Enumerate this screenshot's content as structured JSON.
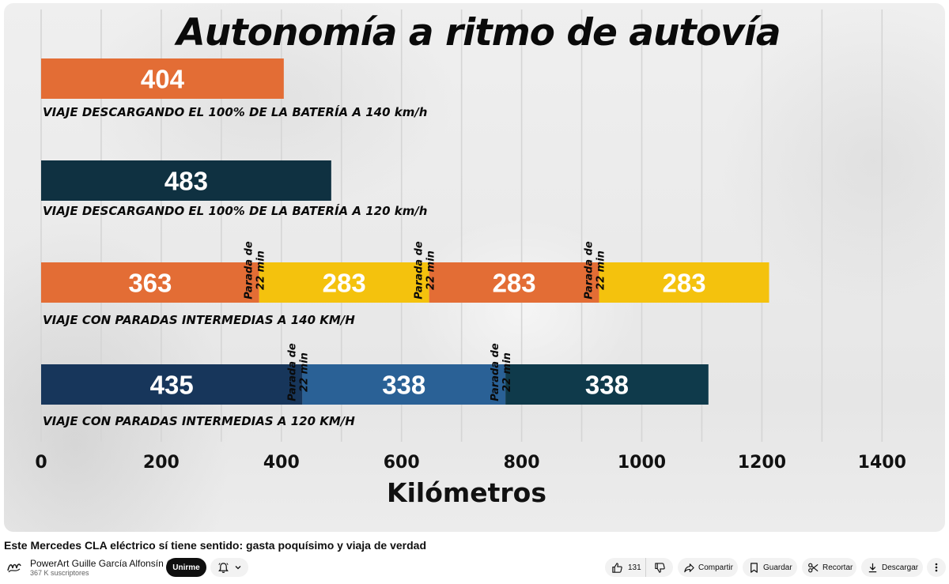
{
  "video": {
    "chart_title": "Autonomía a ritmo de autovía",
    "chart_data": {
      "type": "bar",
      "orientation": "horizontal-stacked",
      "x_label": "Kilómetros",
      "x_ticks": [
        "0",
        "200",
        "400",
        "600",
        "800",
        "1000",
        "1200",
        "1400"
      ],
      "xlim": [
        0,
        1460
      ],
      "grid": true,
      "stop_label_line1": "Parada de",
      "stop_label_line2": "22 min",
      "rows": [
        {
          "label": "VIAJE DESCARGANDO EL 100% DE LA BATERÍA A 140 km/h",
          "segments": [
            {
              "value": 404,
              "color": "#e36d35"
            }
          ],
          "stops_after": []
        },
        {
          "label": "VIAJE DESCARGANDO EL 100% DE LA BATERÍA A 120 km/h",
          "segments": [
            {
              "value": 483,
              "color": "#0f3141"
            }
          ],
          "stops_after": []
        },
        {
          "label": "VIAJE CON PARADAS INTERMEDIAS A 140 KM/H",
          "segments": [
            {
              "value": 363,
              "color": "#e36d35"
            },
            {
              "value": 283,
              "color": "#f4c20d"
            },
            {
              "value": 283,
              "color": "#e36d35"
            },
            {
              "value": 283,
              "color": "#f4c20d"
            }
          ],
          "stops_after": [
            0,
            1,
            2
          ]
        },
        {
          "label": "VIAJE CON PARADAS INTERMEDIAS A 120 KM/H",
          "segments": [
            {
              "value": 435,
              "color": "#17365b"
            },
            {
              "value": 338,
              "color": "#2a6196"
            },
            {
              "value": 338,
              "color": "#0f3a4b"
            }
          ],
          "stops_after": [
            0,
            1
          ]
        }
      ]
    }
  },
  "info": {
    "video_title": "Este Mercedes CLA eléctrico sí tiene sentido: gasta poquísimo y viaja de verdad",
    "channel_name": "PowerArt Guille García Alfonsín",
    "subscribers": "367 K suscriptores",
    "join_label": "Unirme",
    "likes": "131",
    "share_label": "Compartir",
    "save_label": "Guardar",
    "clip_label": "Recortar",
    "download_label": "Descargar"
  },
  "icons": {
    "avatar": "channel-logo",
    "verified": "check-icon",
    "bell": "bell-icon",
    "like": "thumbs-up-icon",
    "dislike": "thumbs-down-icon",
    "share": "share-arrow-icon",
    "save": "bookmark-icon",
    "clip": "scissors-icon",
    "download": "download-icon",
    "more": "more-vertical-icon"
  }
}
